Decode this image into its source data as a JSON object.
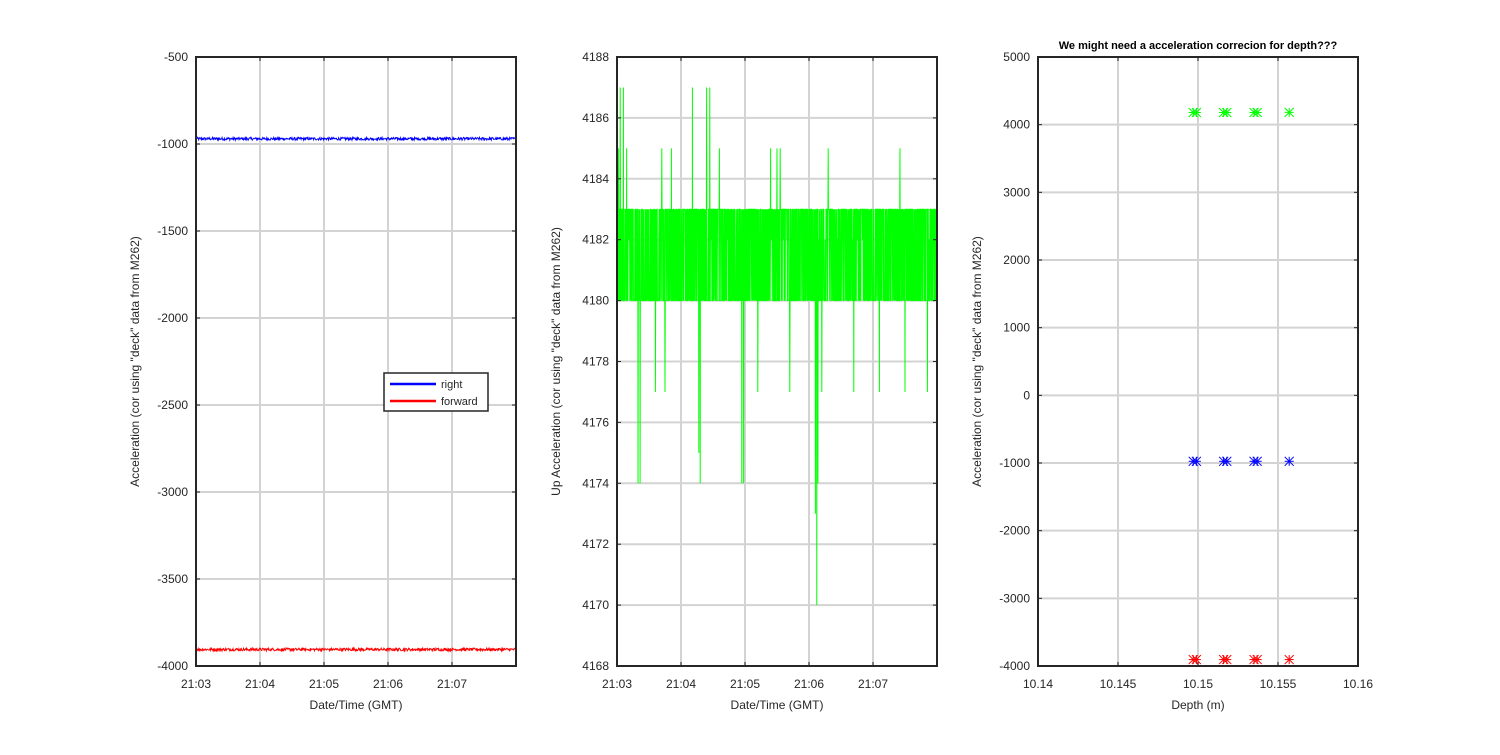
{
  "colors": {
    "blue": "#0000ff",
    "red": "#ff0000",
    "green": "#00ff00",
    "axes": "#262626",
    "grid": "#d3d3d3"
  },
  "chart_data": [
    {
      "type": "line",
      "title": "",
      "xlabel": "Date/Time (GMT)",
      "ylabel": "Acceleration (cor using \"deck\" data from M262)",
      "x_ticks": [
        "21:03",
        "21:04",
        "21:05",
        "21:06",
        "21:07"
      ],
      "xlim": [
        "21:03",
        "21:08"
      ],
      "y_ticks": [
        -500,
        -1000,
        -1500,
        -2000,
        -2500,
        -3000,
        -3500,
        -4000
      ],
      "ylim": [
        -4000,
        -500
      ],
      "grid": true,
      "legend_position": "right-center",
      "series": [
        {
          "name": "right",
          "color": "#0000ff",
          "approx_value": -970,
          "noise": 8
        },
        {
          "name": "forward",
          "color": "#ff0000",
          "approx_value": -3905,
          "noise": 8
        }
      ]
    },
    {
      "type": "line",
      "title": "",
      "xlabel": "Date/Time (GMT)",
      "ylabel": "Up Acceleration (cor using \"deck\" data from M262)",
      "x_ticks": [
        "21:03",
        "21:04",
        "21:05",
        "21:06",
        "21:07"
      ],
      "xlim": [
        "21:03",
        "21:08"
      ],
      "y_ticks": [
        4188,
        4186,
        4184,
        4182,
        4180,
        4178,
        4176,
        4174,
        4172,
        4170,
        4168
      ],
      "ylim": [
        4168,
        4188
      ],
      "grid": true,
      "series": [
        {
          "color": "#00ff00",
          "common_values": [
            4180,
            4183
          ],
          "max": 4187,
          "min": 4170
        }
      ]
    },
    {
      "type": "scatter",
      "title": "We might need a acceleration correcion for depth???",
      "xlabel": "Depth (m)",
      "ylabel": "Acceleration (cor using \"deck\" data from M262)",
      "x_ticks": [
        "10.14",
        "10.145",
        "10.15",
        "10.155",
        "10.16"
      ],
      "xlim": [
        10.14,
        10.16
      ],
      "y_ticks": [
        5000,
        4000,
        3000,
        2000,
        1000,
        0,
        -1000,
        -2000,
        -3000,
        -4000
      ],
      "ylim": [
        -4000,
        5000
      ],
      "grid": true,
      "x": [
        10.1497,
        10.1499,
        10.1516,
        10.1518,
        10.1535,
        10.1537,
        10.1557
      ],
      "series": [
        {
          "color": "#00ff00",
          "values": [
            4180,
            4180,
            4180,
            4180,
            4180,
            4180,
            4182
          ]
        },
        {
          "color": "#0000ff",
          "values": [
            -975,
            -975,
            -975,
            -975,
            -975,
            -975,
            -975
          ]
        },
        {
          "color": "#ff0000",
          "values": [
            -3905,
            -3905,
            -3905,
            -3905,
            -3905,
            -3905,
            -3905
          ]
        }
      ]
    }
  ]
}
